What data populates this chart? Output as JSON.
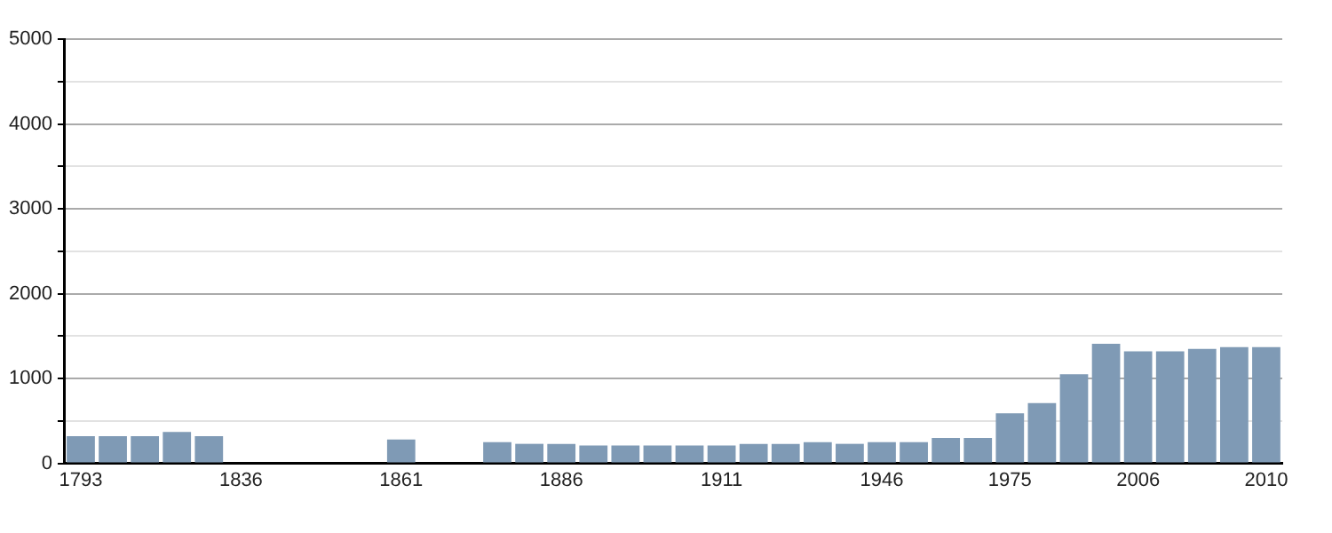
{
  "chart_data": {
    "type": "bar",
    "categories": [
      "1793",
      null,
      null,
      null,
      null,
      "1836",
      null,
      null,
      null,
      null,
      "1861",
      null,
      null,
      null,
      null,
      "1886",
      null,
      null,
      null,
      null,
      "1911",
      null,
      null,
      null,
      null,
      "1946",
      null,
      null,
      null,
      "1975",
      null,
      null,
      null,
      "2006",
      null,
      null,
      null,
      "2010"
    ],
    "values": [
      320,
      320,
      320,
      370,
      320,
      null,
      null,
      null,
      null,
      null,
      280,
      null,
      null,
      250,
      230,
      230,
      210,
      210,
      210,
      210,
      210,
      230,
      230,
      250,
      230,
      250,
      250,
      300,
      300,
      590,
      710,
      1050,
      1410,
      1320,
      1320,
      1350,
      1370,
      1370
    ],
    "color": "#7f9ab5",
    "ylim": [
      0,
      5000
    ],
    "yticks": [
      0,
      {
        "value": 500,
        "label": null
      },
      1000,
      {
        "value": 1500,
        "label": null
      },
      2000,
      {
        "value": 2500,
        "label": null
      },
      3000,
      {
        "value": 3500,
        "label": null
      },
      4000,
      {
        "value": 4500,
        "label": null
      },
      5000
    ],
    "grid": "y"
  }
}
